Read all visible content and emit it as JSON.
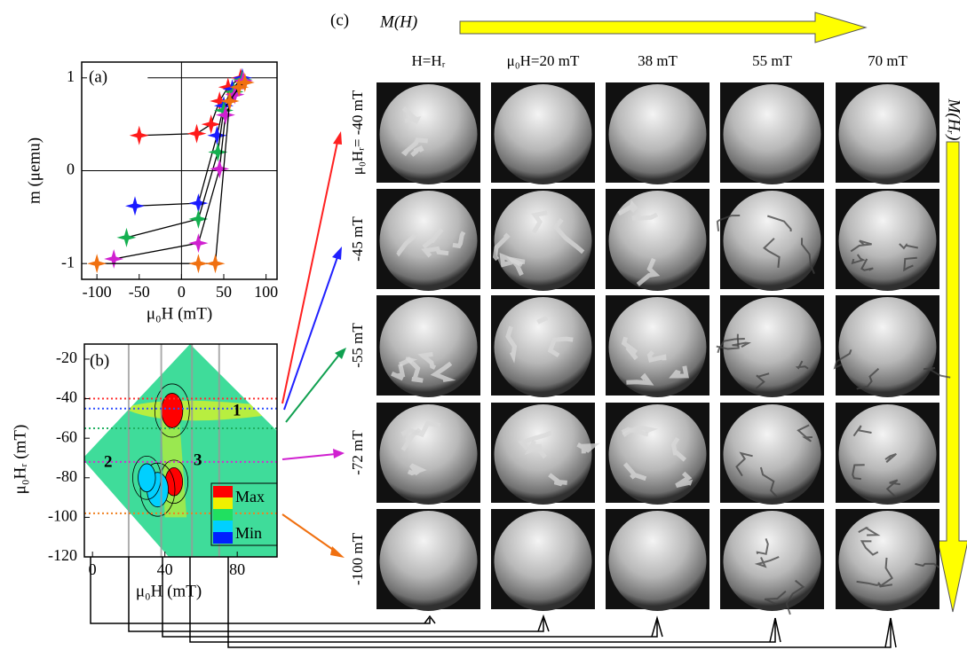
{
  "chart_data": [
    {
      "type": "scatter",
      "panel_label": "(a)",
      "x_label": "μ₀H (mT)",
      "y_label": "m (μemu)",
      "xlim": [
        -118,
        113
      ],
      "ylim": [
        -1.17,
        1.17
      ],
      "xticks": [
        -100,
        -50,
        0,
        50,
        100
      ],
      "yticks": [
        -1,
        0,
        1
      ],
      "series": [
        {
          "color": "#ff1a1a",
          "x": [
            -50,
            18,
            35,
            45,
            55,
            70
          ],
          "values": [
            0.38,
            0.4,
            0.5,
            0.75,
            0.9,
            1.0
          ]
        },
        {
          "color": "#1a1aff",
          "x": [
            -55,
            20,
            42,
            50,
            60,
            72
          ],
          "values": [
            -0.38,
            -0.35,
            0.38,
            0.7,
            0.88,
            1.0
          ]
        },
        {
          "color": "#14b050",
          "x": [
            -65,
            20,
            43,
            50,
            62,
            72
          ],
          "values": [
            -0.72,
            -0.52,
            0.2,
            0.65,
            0.85,
            0.98
          ]
        },
        {
          "color": "#d020d0",
          "x": [
            -80,
            20,
            45,
            52,
            63,
            73
          ],
          "values": [
            -0.95,
            -0.78,
            0.02,
            0.6,
            0.82,
            0.97
          ]
        },
        {
          "color": "#f07010",
          "x": [
            -100,
            20,
            40,
            57,
            68,
            75
          ],
          "values": [
            -1.0,
            -1.0,
            -1.0,
            0.75,
            0.9,
            0.95
          ]
        }
      ]
    },
    {
      "type": "contour",
      "panel_label": "(b)",
      "x_label": "μ₀H (mT)",
      "y_label": "μ₀Hᵣ (mT)",
      "xlim": [
        -4.5,
        102
      ],
      "ylim": [
        -120,
        -12.4
      ],
      "xticks": [
        0,
        40,
        80
      ],
      "yticks": [
        -120,
        -100,
        -80,
        -60,
        -40,
        -20
      ],
      "colorbar_labels": [
        "Max",
        "Min"
      ],
      "region_labels": [
        "1",
        "2",
        "3"
      ],
      "features": [
        {
          "x": 44,
          "y": -46,
          "value": 1.0
        },
        {
          "x": 45,
          "y": -82,
          "value": 0.8
        },
        {
          "x": 36,
          "y": -86,
          "value": 0.0
        },
        {
          "x": 30,
          "y": -80,
          "value": 0.2
        }
      ],
      "hr_cuts": [
        {
          "value": -40,
          "color": "#ff3030"
        },
        {
          "value": -45,
          "color": "#3050ff"
        },
        {
          "value": -55,
          "color": "#20b060"
        },
        {
          "value": -72,
          "color": "#d030d0"
        },
        {
          "value": -98,
          "color": "#f08020"
        }
      ],
      "h_cuts": [
        20,
        38,
        55,
        70
      ]
    }
  ],
  "panel_c": {
    "panel_label": "(c)",
    "row_axis_label": "M(Hᵣ)",
    "column_axis_label": "M(H)",
    "column_headers": [
      "H=Hᵣ",
      "μ₀H=20 mT",
      "38 mT",
      "55 mT",
      "70 mT"
    ],
    "row_headers": [
      "μ₀Hᵣ= -40 mT",
      "-45 mT",
      "-55 mT",
      "-72 mT",
      "-100 mT"
    ]
  }
}
